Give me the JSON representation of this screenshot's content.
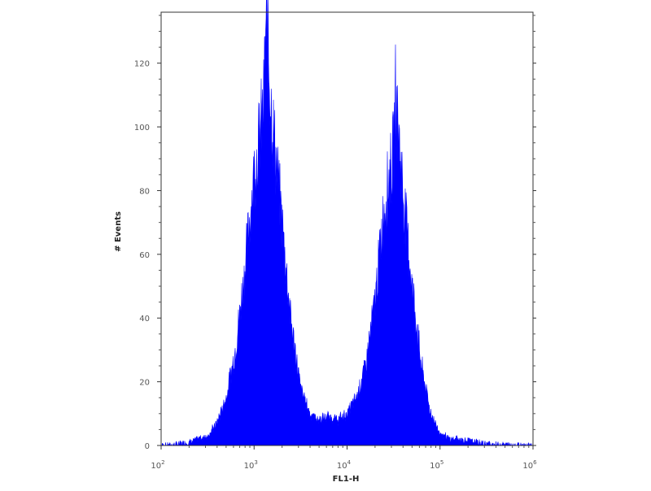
{
  "chart_data": {
    "type": "area",
    "title": "",
    "xlabel": "FL1-H",
    "ylabel": "# Events",
    "xscale": "log",
    "xlim": [
      100,
      1000000
    ],
    "ylim": [
      0,
      136
    ],
    "xticks": [
      {
        "base": "10",
        "exp": "2"
      },
      {
        "base": "10",
        "exp": "3"
      },
      {
        "base": "10",
        "exp": "4"
      },
      {
        "base": "10",
        "exp": "5"
      },
      {
        "base": "10",
        "exp": "6"
      }
    ],
    "yticks": [
      "0",
      "20",
      "40",
      "60",
      "80",
      "100",
      "120"
    ],
    "grid": false,
    "fill_color": "#0000ff",
    "x": [
      100,
      126,
      158,
      200,
      251,
      316,
      398,
      501,
      631,
      794,
      1000,
      1259,
      1350,
      1585,
      1995,
      2512,
      3162,
      3981,
      5012,
      6310,
      7943,
      10000,
      12589,
      15849,
      19953,
      25119,
      31623,
      33113,
      39811,
      50119,
      63096,
      79433,
      100000,
      125893,
      158489,
      199526,
      251189,
      316228,
      398107,
      501187,
      630957,
      794328,
      1000000
    ],
    "y": [
      0,
      0,
      0.5,
      1,
      2,
      3,
      7,
      15,
      30,
      55,
      85,
      105,
      133,
      100,
      70,
      38,
      18,
      10,
      8,
      9,
      8,
      10,
      15,
      25,
      45,
      75,
      92,
      110,
      80,
      50,
      25,
      10,
      4,
      2,
      2,
      1.5,
      1,
      0.5,
      0.3,
      0.2,
      0.2,
      0.1,
      0
    ]
  }
}
